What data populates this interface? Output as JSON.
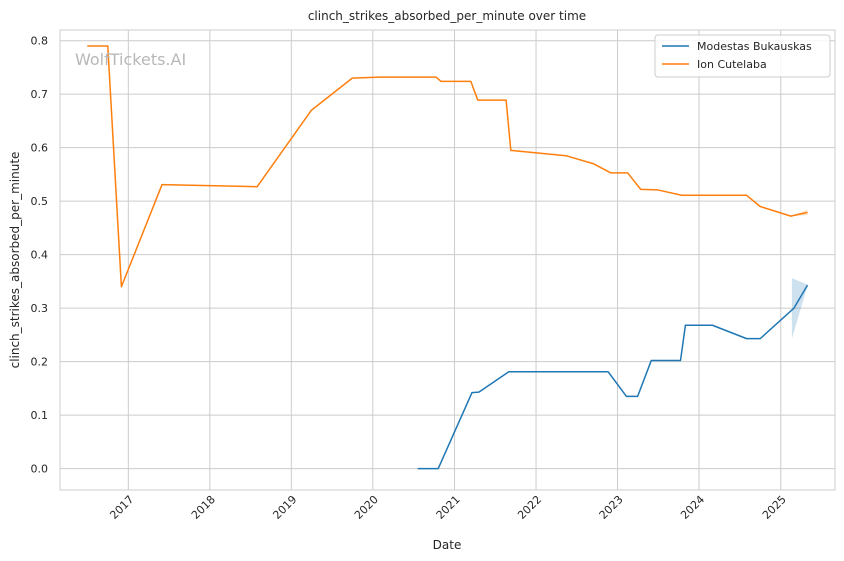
{
  "chart_data": {
    "type": "line",
    "title": "clinch_strikes_absorbed_per_minute over time",
    "xlabel": "Date",
    "ylabel": "clinch_strikes_absorbed_per_minute",
    "watermark": "WolfTickets.AI",
    "x_ticks": [
      "2017",
      "2018",
      "2019",
      "2020",
      "2021",
      "2022",
      "2023",
      "2024",
      "2025"
    ],
    "y_ticks": [
      "0.0",
      "0.1",
      "0.2",
      "0.3",
      "0.4",
      "0.5",
      "0.6",
      "0.7",
      "0.8"
    ],
    "xlim": [
      "2016-03-01",
      "2025-09-01"
    ],
    "ylim": [
      -0.04,
      0.82
    ],
    "grid": true,
    "legend_position": "top-right",
    "series": [
      {
        "name": "Modestas Bukauskas",
        "color": "#1f77b4",
        "points": [
          [
            "2020-07-20",
            0.0
          ],
          [
            "2020-10-20",
            0.0
          ],
          [
            "2021-03-20",
            0.142
          ],
          [
            "2021-04-20",
            0.143
          ],
          [
            "2021-09-01",
            0.181
          ],
          [
            "2022-11-20",
            0.181
          ],
          [
            "2023-02-10",
            0.135
          ],
          [
            "2023-04-01",
            0.135
          ],
          [
            "2023-06-01",
            0.202
          ],
          [
            "2023-10-10",
            0.202
          ],
          [
            "2023-11-01",
            0.268
          ],
          [
            "2024-03-01",
            0.268
          ],
          [
            "2024-08-01",
            0.243
          ],
          [
            "2024-10-01",
            0.243
          ],
          [
            "2025-03-01",
            0.3
          ],
          [
            "2025-05-01",
            0.343
          ]
        ],
        "confidence_band": [
          [
            "2025-02-20",
            0.243,
            0.356
          ],
          [
            "2025-05-01",
            0.342,
            0.344
          ]
        ]
      },
      {
        "name": "Ion Cutelaba",
        "color": "#ff7f0e",
        "points": [
          [
            "2016-07-01",
            0.79
          ],
          [
            "2016-10-01",
            0.79
          ],
          [
            "2016-12-01",
            0.34
          ],
          [
            "2017-06-01",
            0.531
          ],
          [
            "2018-08-01",
            0.527
          ],
          [
            "2019-04-01",
            0.67
          ],
          [
            "2019-10-01",
            0.73
          ],
          [
            "2020-02-01",
            0.732
          ],
          [
            "2020-10-10",
            0.732
          ],
          [
            "2020-11-01",
            0.724
          ],
          [
            "2021-03-15",
            0.724
          ],
          [
            "2021-04-15",
            0.689
          ],
          [
            "2021-08-20",
            0.689
          ],
          [
            "2021-09-10",
            0.595
          ],
          [
            "2022-05-15",
            0.585
          ],
          [
            "2022-09-15",
            0.57
          ],
          [
            "2022-12-01",
            0.553
          ],
          [
            "2023-02-15",
            0.553
          ],
          [
            "2023-04-15",
            0.522
          ],
          [
            "2023-07-01",
            0.521
          ],
          [
            "2023-10-15",
            0.511
          ],
          [
            "2024-08-01",
            0.511
          ],
          [
            "2024-10-01",
            0.49
          ],
          [
            "2025-02-15",
            0.472
          ],
          [
            "2025-05-01",
            0.479
          ]
        ],
        "confidence_band": [
          [
            "2025-02-15",
            0.472,
            0.472
          ],
          [
            "2025-05-01",
            0.474,
            0.484
          ]
        ]
      }
    ]
  }
}
